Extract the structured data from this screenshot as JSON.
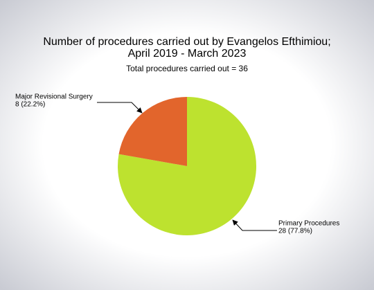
{
  "chart_data": {
    "type": "pie",
    "title": [
      "Number of procedures carried out by Evangelos Efthimiou;",
      "April 2019 - March 2023"
    ],
    "subtitle": "Total procedures carried out = 36",
    "categories": [
      "Primary Procedures",
      "Major Revisional Surgery"
    ],
    "values": [
      28,
      8
    ],
    "value_labels": [
      "28 (77.8%)",
      "8 (22.2%)"
    ],
    "colors": [
      "#bde22f",
      "#e2652c"
    ]
  }
}
